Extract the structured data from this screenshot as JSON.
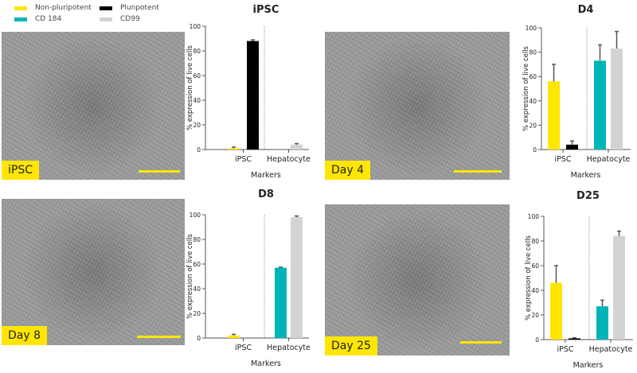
{
  "legend": [
    {
      "name": "Non-pluripotent",
      "color": "#ffe600"
    },
    {
      "name": "Plunpotent",
      "color": "#000000"
    },
    {
      "name": "CD 184",
      "color": "#00b5b8"
    },
    {
      "name": "CD99",
      "color": "#d3d3d3"
    }
  ],
  "images": [
    {
      "label": "iPSC"
    },
    {
      "label": "Day 4"
    },
    {
      "label": "Day 8"
    },
    {
      "label": "Day 25"
    }
  ],
  "chart_data": [
    {
      "type": "bar",
      "title": "iPSC",
      "ylabel": "% expression of live cells",
      "xlabel": "Markers",
      "ylim": [
        0,
        100
      ],
      "yticks": [
        0,
        20,
        40,
        60,
        80,
        100
      ],
      "categories": [
        "iPSC",
        "Hepatocyte"
      ],
      "series": [
        {
          "name": "Non-pluripotent",
          "group": "iPSC",
          "value": 1,
          "error": 1
        },
        {
          "name": "Plunpotent",
          "group": "iPSC",
          "value": 88,
          "error": 1
        },
        {
          "name": "CD 184",
          "group": "Hepatocyte",
          "value": 0,
          "error": 0
        },
        {
          "name": "CD99",
          "group": "Hepatocyte",
          "value": 4,
          "error": 0.8
        }
      ]
    },
    {
      "type": "bar",
      "title": "D4",
      "ylabel": "% expression of live cells",
      "xlabel": "Markers",
      "ylim": [
        0,
        100
      ],
      "yticks": [
        0,
        20,
        40,
        60,
        80,
        100
      ],
      "categories": [
        "iPSC",
        "Hepatocyte"
      ],
      "series": [
        {
          "name": "Non-pluripotent",
          "group": "iPSC",
          "value": 56,
          "error": 14
        },
        {
          "name": "Plunpotent",
          "group": "iPSC",
          "value": 4,
          "error": 3
        },
        {
          "name": "CD 184",
          "group": "Hepatocyte",
          "value": 73,
          "error": 13
        },
        {
          "name": "CD99",
          "group": "Hepatocyte",
          "value": 83,
          "error": 14
        }
      ]
    },
    {
      "type": "bar",
      "title": "D8",
      "ylabel": "% expression of live cells",
      "xlabel": "Markers",
      "ylim": [
        0,
        100
      ],
      "yticks": [
        0,
        20,
        40,
        60,
        80,
        100
      ],
      "categories": [
        "iPSC",
        "Hepatocyte"
      ],
      "series": [
        {
          "name": "Non-pluripotent",
          "group": "iPSC",
          "value": 2,
          "error": 1
        },
        {
          "name": "Plunpotent",
          "group": "iPSC",
          "value": 0,
          "error": 0
        },
        {
          "name": "CD 184",
          "group": "Hepatocyte",
          "value": 57,
          "error": 0.5
        },
        {
          "name": "CD99",
          "group": "Hepatocyte",
          "value": 98,
          "error": 1
        }
      ]
    },
    {
      "type": "bar",
      "title": "D25",
      "ylabel": "% expression of live cells",
      "xlabel": "Markers",
      "ylim": [
        0,
        100
      ],
      "yticks": [
        0,
        20,
        40,
        60,
        80,
        100
      ],
      "categories": [
        "iPSC",
        "Hepatocyte"
      ],
      "series": [
        {
          "name": "Non-pluripotent",
          "group": "iPSC",
          "value": 46,
          "error": 14
        },
        {
          "name": "Plunpotent",
          "group": "iPSC",
          "value": 1,
          "error": 0.5
        },
        {
          "name": "CD 184",
          "group": "Hepatocyte",
          "value": 27,
          "error": 5
        },
        {
          "name": "CD99",
          "group": "Hepatocyte",
          "value": 84,
          "error": 4
        }
      ]
    }
  ]
}
